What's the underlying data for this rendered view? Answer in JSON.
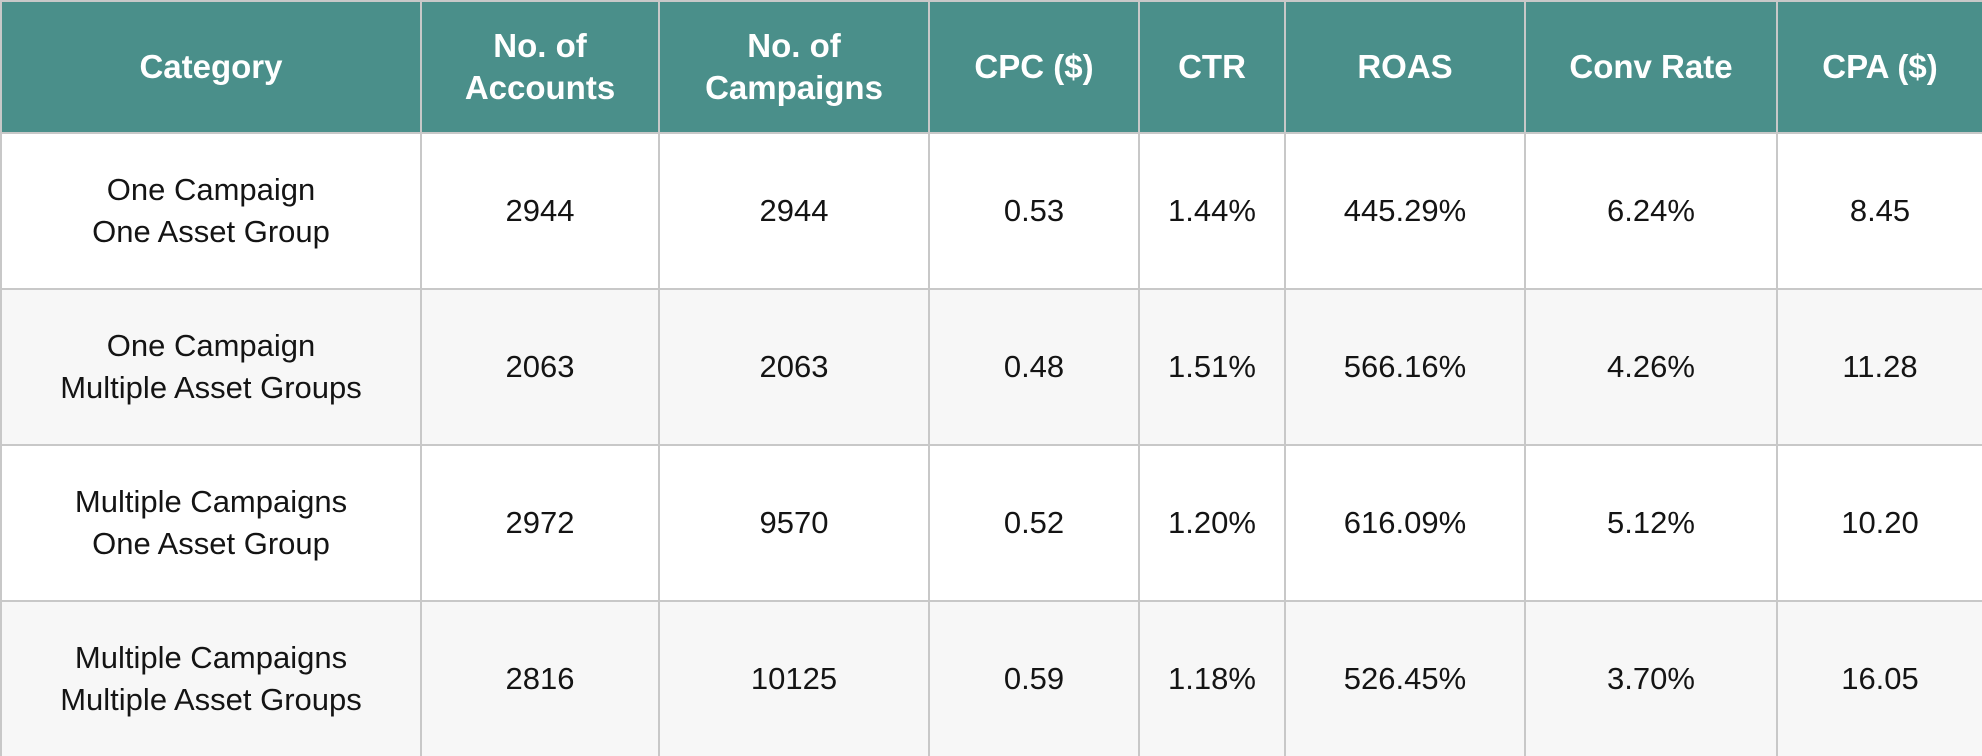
{
  "colors": {
    "header_bg": "#4a8f8a",
    "header_text": "#ffffff",
    "row_alt": "#f7f7f7",
    "grid": "#c8c8c8"
  },
  "watermark": {
    "icon": "target-arrow-logo-icon"
  },
  "chart_data": {
    "type": "table",
    "columns": [
      "Category",
      "No. of\nAccounts",
      "No. of\nCampaigns",
      "CPC ($)",
      "CTR",
      "ROAS",
      "Conv Rate",
      "CPA ($)"
    ],
    "rows": [
      [
        "One Campaign\nOne Asset Group",
        "2944",
        "2944",
        "0.53",
        "1.44%",
        "445.29%",
        "6.24%",
        "8.45"
      ],
      [
        "One Campaign\nMultiple Asset Groups",
        "2063",
        "2063",
        "0.48",
        "1.51%",
        "566.16%",
        "4.26%",
        "11.28"
      ],
      [
        "Multiple Campaigns\nOne Asset Group",
        "2972",
        "9570",
        "0.52",
        "1.20%",
        "616.09%",
        "5.12%",
        "10.20"
      ],
      [
        "Multiple Campaigns\nMultiple Asset Groups",
        "2816",
        "10125",
        "0.59",
        "1.18%",
        "526.45%",
        "3.70%",
        "16.05"
      ]
    ]
  }
}
